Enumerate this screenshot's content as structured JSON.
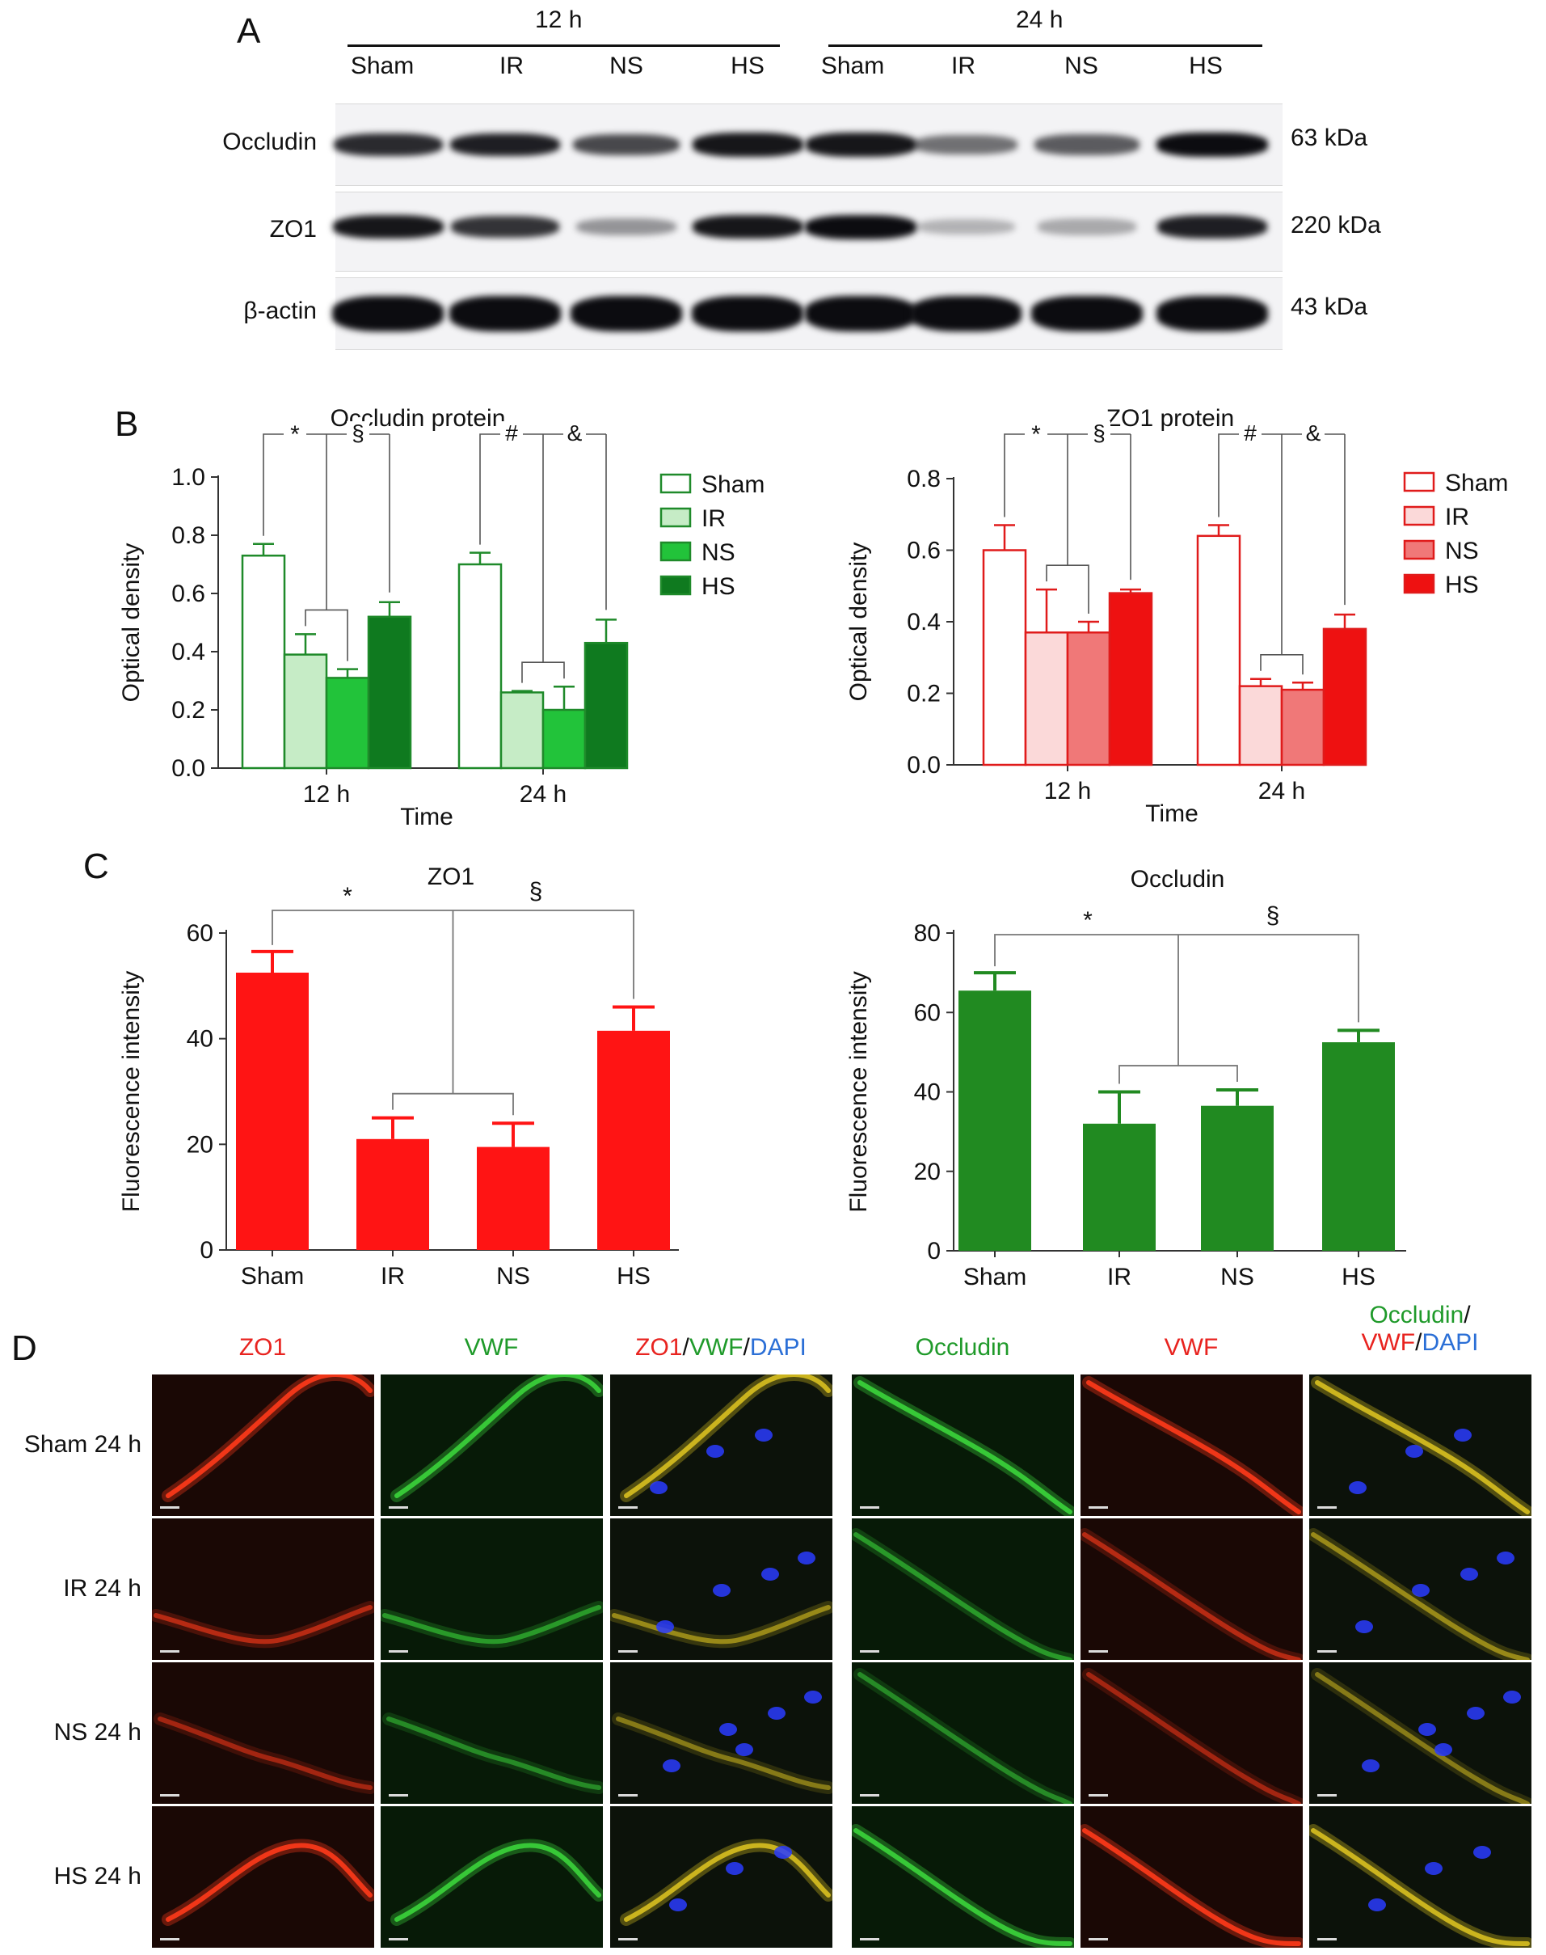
{
  "panels": {
    "a": "A",
    "b": "B",
    "c": "C",
    "d": "D"
  },
  "blot": {
    "time_headers": [
      "12 h",
      "24 h"
    ],
    "lanes": [
      "Sham",
      "IR",
      "NS",
      "HS",
      "Sham",
      "IR",
      "NS",
      "HS"
    ],
    "rows": [
      {
        "label": "Occludin",
        "size": "63 kDa",
        "intensity": [
          0.85,
          0.9,
          0.7,
          0.95,
          0.95,
          0.5,
          0.6,
          1.0
        ]
      },
      {
        "label": "ZO1",
        "size": "220 kDa",
        "intensity": [
          0.95,
          0.8,
          0.3,
          0.95,
          1.0,
          0.15,
          0.2,
          0.9
        ]
      },
      {
        "label": "β-actin",
        "size": "43 kDa",
        "intensity": [
          1.0,
          1.0,
          1.0,
          1.0,
          1.0,
          1.0,
          1.0,
          1.0
        ]
      }
    ]
  },
  "chart_data": [
    {
      "type": "bar",
      "title": "Occludin protein",
      "xlabel": "Time",
      "ylabel": "Optical density",
      "categories": [
        "12 h",
        "24 h"
      ],
      "ylim": [
        0,
        1.0
      ],
      "yticks": [
        "0.0",
        "0.2",
        "0.4",
        "0.6",
        "0.8",
        "1.0"
      ],
      "colors": [
        "#ffffff",
        "#c6ecc6",
        "#22c33a",
        "#0f7a1f"
      ],
      "edge": "#1f8a2a",
      "series": [
        {
          "name": "Sham",
          "values": [
            0.73,
            0.7
          ],
          "errors": [
            0.04,
            0.04
          ]
        },
        {
          "name": "IR",
          "values": [
            0.39,
            0.26
          ],
          "errors": [
            0.07,
            0.005
          ]
        },
        {
          "name": "NS",
          "values": [
            0.31,
            0.2
          ],
          "errors": [
            0.03,
            0.08
          ]
        },
        {
          "name": "HS",
          "values": [
            0.52,
            0.43
          ],
          "errors": [
            0.05,
            0.08
          ]
        }
      ],
      "annotations": [
        "*",
        "§",
        "#",
        "&"
      ]
    },
    {
      "type": "bar",
      "title": "ZO1 protein",
      "xlabel": "Time",
      "ylabel": "Optical density",
      "categories": [
        "12 h",
        "24 h"
      ],
      "ylim": [
        0,
        0.8
      ],
      "yticks": [
        "0.0",
        "0.2",
        "0.4",
        "0.6",
        "0.8"
      ],
      "colors": [
        "#ffffff",
        "#fbd9d9",
        "#f07878",
        "#ee1111"
      ],
      "edge": "#e01b1b",
      "series": [
        {
          "name": "Sham",
          "values": [
            0.6,
            0.64
          ],
          "errors": [
            0.07,
            0.03
          ]
        },
        {
          "name": "IR",
          "values": [
            0.37,
            0.22
          ],
          "errors": [
            0.12,
            0.02
          ]
        },
        {
          "name": "NS",
          "values": [
            0.37,
            0.21
          ],
          "errors": [
            0.03,
            0.02
          ]
        },
        {
          "name": "HS",
          "values": [
            0.48,
            0.38
          ],
          "errors": [
            0.01,
            0.04
          ]
        }
      ],
      "annotations": [
        "*",
        "§",
        "#",
        "&"
      ]
    },
    {
      "type": "bar",
      "title": "ZO1",
      "ylabel": "Fluorescence intensity",
      "categories": [
        "Sham",
        "IR",
        "NS",
        "HS"
      ],
      "ylim": [
        0,
        60
      ],
      "yticks": [
        "0",
        "20",
        "40",
        "60"
      ],
      "color": "#ff1414",
      "values": [
        52.5,
        21.0,
        19.5,
        41.5
      ],
      "errors": [
        4.0,
        4.0,
        4.5,
        4.5
      ],
      "annotations": [
        "*",
        "§"
      ]
    },
    {
      "type": "bar",
      "title": "Occludin",
      "ylabel": "Fluorescence intensity",
      "categories": [
        "Sham",
        "IR",
        "NS",
        "HS"
      ],
      "ylim": [
        0,
        80
      ],
      "yticks": [
        "0",
        "20",
        "40",
        "60",
        "80"
      ],
      "color": "#218a21",
      "values": [
        65.5,
        32.0,
        36.5,
        52.5
      ],
      "errors": [
        4.5,
        8.0,
        4.0,
        3.0
      ],
      "annotations": [
        "*",
        "§"
      ]
    }
  ],
  "micro": {
    "headers_left": [
      {
        "parts": [
          {
            "text": "ZO1",
            "color": "#e8231f"
          }
        ]
      },
      {
        "parts": [
          {
            "text": "VWF",
            "color": "#1f9a2a"
          }
        ]
      },
      {
        "parts": [
          {
            "text": "ZO1",
            "color": "#e8231f"
          },
          {
            "text": "/",
            "color": "#111111"
          },
          {
            "text": "VWF",
            "color": "#1f9a2a"
          },
          {
            "text": "/",
            "color": "#111111"
          },
          {
            "text": "DAPI",
            "color": "#2b6fd6"
          }
        ]
      }
    ],
    "headers_right": [
      {
        "parts": [
          {
            "text": "Occludin",
            "color": "#1f9a2a"
          }
        ]
      },
      {
        "parts": [
          {
            "text": "VWF",
            "color": "#e8231f"
          }
        ]
      },
      {
        "line1": [
          {
            "text": "Occludin",
            "color": "#1f9a2a"
          },
          {
            "text": "/",
            "color": "#111111"
          }
        ],
        "line2": [
          {
            "text": "VWF",
            "color": "#e8231f"
          },
          {
            "text": "/",
            "color": "#111111"
          },
          {
            "text": "DAPI",
            "color": "#2b6fd6"
          }
        ]
      }
    ],
    "rows": [
      "Sham 24 h",
      "IR 24 h",
      "NS 24 h",
      "HS 24 h"
    ],
    "channel_colors": {
      "red": "#ff3a1a",
      "green": "#3bd43b",
      "merge": "#d8c020",
      "dapi": "#2a3cff"
    }
  }
}
